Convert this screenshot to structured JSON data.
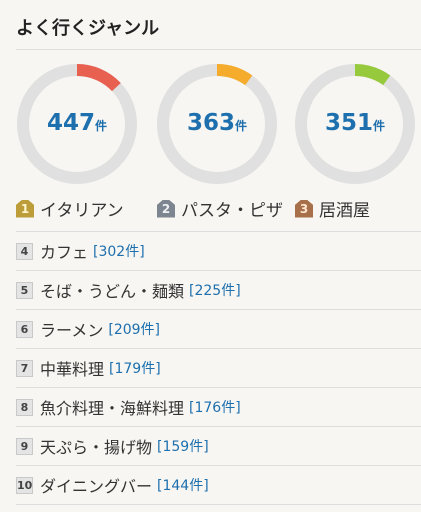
{
  "section": {
    "title": "よく行くジャンル"
  },
  "top3": [
    {
      "rank": "1",
      "name": "イタリアン",
      "count": "447",
      "unit": "件",
      "ratio": 0.13,
      "color": "#e8604f"
    },
    {
      "rank": "2",
      "name": "パスタ・ピザ",
      "count": "363",
      "unit": "件",
      "ratio": 0.1,
      "color": "#f5ac2c"
    },
    {
      "rank": "3",
      "name": "居酒屋",
      "count": "351",
      "unit": "件",
      "ratio": 0.1,
      "color": "#97c93c"
    }
  ],
  "ranking": [
    {
      "rank": "4",
      "name": "カフェ",
      "count": "[302件]"
    },
    {
      "rank": "5",
      "name": "そば・うどん・麺類",
      "count": "[225件]"
    },
    {
      "rank": "6",
      "name": "ラーメン",
      "count": "[209件]"
    },
    {
      "rank": "7",
      "name": "中華料理",
      "count": "[179件]"
    },
    {
      "rank": "8",
      "name": "魚介料理・海鮮料理",
      "count": "[176件]"
    },
    {
      "rank": "9",
      "name": "天ぷら・揚げ物",
      "count": "[159件]"
    },
    {
      "rank": "10",
      "name": "ダイニングバー",
      "count": "[144件]"
    }
  ],
  "colors": {
    "track": "#e0e0e0",
    "count_text": "#1d6fae"
  }
}
